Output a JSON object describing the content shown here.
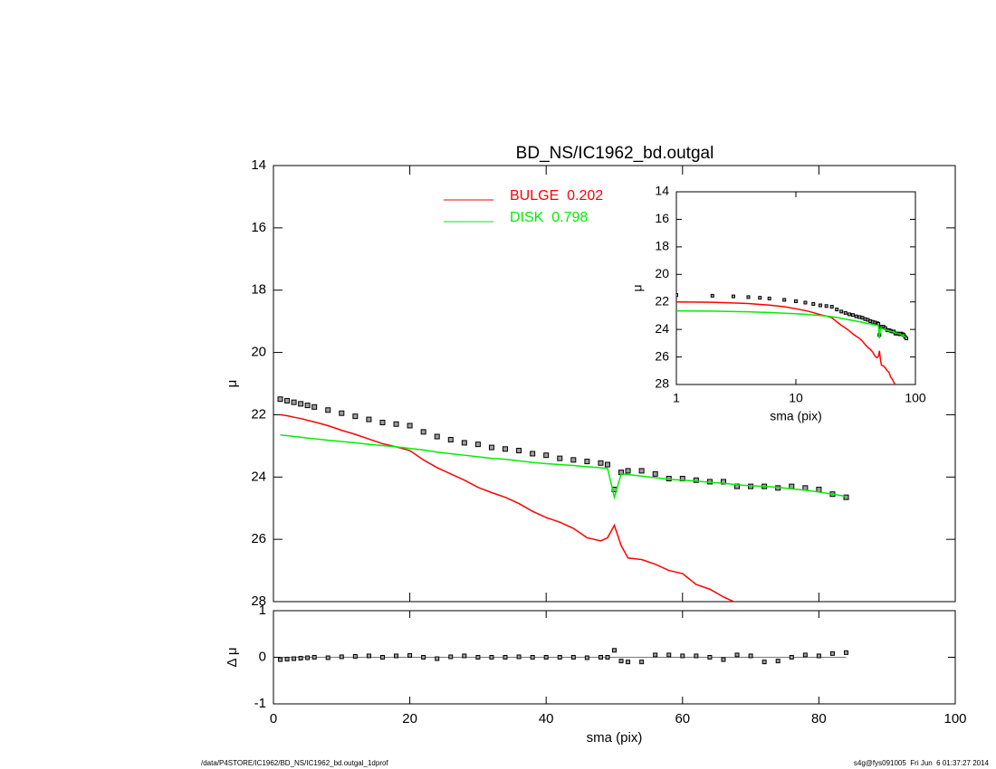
{
  "chart_data": [
    {
      "type": "line",
      "title": "BD_NS/IC1962_bd.outgal",
      "ylabel": "μ",
      "x": [
        1,
        2,
        3,
        4,
        5,
        6,
        8,
        10,
        12,
        14,
        16,
        18,
        20,
        22,
        24,
        26,
        28,
        30,
        32,
        34,
        36,
        38,
        40,
        42,
        44,
        46,
        48,
        49,
        50,
        51,
        52,
        54,
        56,
        58,
        60,
        62,
        64,
        66,
        68,
        70,
        72,
        74,
        76,
        78,
        80,
        82,
        84
      ],
      "xlim": [
        0,
        100
      ],
      "ylim": [
        28,
        14
      ],
      "yticks": [
        14,
        16,
        18,
        20,
        22,
        24,
        26,
        28
      ],
      "legend": "top-center",
      "series": [
        {
          "marker": "square",
          "color": "#a0a0a0",
          "values": [
            21.5,
            21.55,
            21.6,
            21.65,
            21.7,
            21.75,
            21.85,
            21.95,
            22.05,
            22.15,
            22.25,
            22.3,
            22.35,
            22.55,
            22.7,
            22.8,
            22.9,
            22.95,
            23.05,
            23.1,
            23.15,
            23.25,
            23.3,
            23.4,
            23.45,
            23.5,
            23.55,
            23.6,
            24.4,
            23.85,
            23.8,
            23.8,
            23.9,
            24.05,
            24.05,
            24.1,
            24.15,
            24.15,
            24.3,
            24.3,
            24.3,
            24.35,
            24.3,
            24.35,
            24.4,
            24.55,
            24.65
          ]
        },
        {
          "name": "BULGE  0.202",
          "color": "#ff0000",
          "values": [
            22.0,
            22.03,
            22.08,
            22.12,
            22.18,
            22.23,
            22.35,
            22.5,
            22.63,
            22.78,
            22.93,
            23.03,
            23.15,
            23.45,
            23.7,
            23.9,
            24.1,
            24.33,
            24.5,
            24.65,
            24.85,
            25.1,
            25.3,
            25.45,
            25.65,
            25.95,
            26.05,
            25.95,
            25.55,
            26.2,
            26.6,
            26.65,
            26.8,
            27.0,
            27.1,
            27.45,
            27.6,
            27.85,
            28.05,
            null,
            null,
            null,
            null,
            null,
            null,
            null,
            null
          ]
        },
        {
          "name": "DISK  0.798",
          "color": "#00ee00",
          "values": [
            22.65,
            22.67,
            22.7,
            22.72,
            22.75,
            22.77,
            22.82,
            22.86,
            22.9,
            22.95,
            22.99,
            23.03,
            23.08,
            23.13,
            23.2,
            23.25,
            23.3,
            23.35,
            23.4,
            23.43,
            23.48,
            23.53,
            23.57,
            23.6,
            23.63,
            23.67,
            23.7,
            23.72,
            24.65,
            23.9,
            23.92,
            23.97,
            24.02,
            24.07,
            24.1,
            24.13,
            24.17,
            24.2,
            24.25,
            24.28,
            24.3,
            24.33,
            24.38,
            24.42,
            24.48,
            24.55,
            24.62
          ]
        }
      ]
    },
    {
      "type": "scatter",
      "xlabel": "sma (pix)",
      "ylabel": "Δ μ",
      "x": [
        1,
        2,
        3,
        4,
        5,
        6,
        8,
        10,
        12,
        14,
        16,
        18,
        20,
        22,
        24,
        26,
        28,
        30,
        32,
        34,
        36,
        38,
        40,
        42,
        44,
        46,
        48,
        49,
        50,
        51,
        52,
        54,
        56,
        58,
        60,
        62,
        64,
        66,
        68,
        70,
        72,
        74,
        76,
        78,
        80,
        82,
        84
      ],
      "xlim": [
        0,
        100
      ],
      "xticks": [
        0,
        20,
        40,
        60,
        80,
        100
      ],
      "ylim": [
        -1,
        1
      ],
      "yticks": [
        -1,
        0,
        1
      ],
      "series": [
        {
          "marker": "square",
          "color": "#a0a0a0",
          "values": [
            -0.05,
            -0.04,
            -0.03,
            -0.02,
            -0.01,
            0,
            -0.01,
            0.01,
            0.02,
            0.03,
            0.0,
            0.03,
            0.04,
            0.0,
            -0.03,
            0.01,
            0.03,
            0.0,
            0.0,
            0.0,
            0.01,
            0.0,
            0.0,
            0.0,
            0.0,
            -0.01,
            0.0,
            0.0,
            0.15,
            -0.08,
            -0.1,
            -0.1,
            0.05,
            0.05,
            0.03,
            0.03,
            0.0,
            -0.05,
            0.05,
            0.03,
            -0.1,
            -0.08,
            0.0,
            0.05,
            0.03,
            0.08,
            0.1
          ]
        }
      ]
    },
    {
      "type": "inset",
      "xlabel": "sma (pix)",
      "ylabel": "μ",
      "xscale": "log",
      "xlim": [
        1,
        100
      ],
      "xticks": [
        1,
        10,
        100
      ],
      "ylim": [
        28,
        14
      ],
      "yticks": [
        14,
        16,
        18,
        20,
        22,
        24,
        26,
        28
      ]
    }
  ],
  "footer": {
    "left": "/data/P4STORE/IC1962/BD_NS/IC1962_bd.outgal_1dprof",
    "right": "s4g@fys091005  Fri Jun  6 01:37:27 2014"
  }
}
